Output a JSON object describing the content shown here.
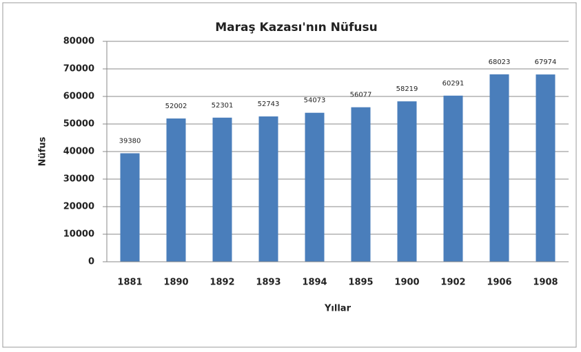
{
  "chart_data": {
    "type": "bar",
    "title": "Maraş Kazası'nın Nüfusu",
    "x_label": "Yıllar",
    "y_label": "Nüfus",
    "categories": [
      "1881",
      "1890",
      "1892",
      "1893",
      "1894",
      "1895",
      "1900",
      "1902",
      "1906",
      "1908"
    ],
    "values": [
      39380,
      52002,
      52301,
      52743,
      54073,
      56077,
      58219,
      60291,
      68023,
      67974
    ],
    "color": "#4a7ebb",
    "ylim": [
      0,
      80000
    ],
    "yticks": [
      0,
      10000,
      20000,
      30000,
      40000,
      50000,
      60000,
      70000,
      80000
    ],
    "grid": true
  }
}
